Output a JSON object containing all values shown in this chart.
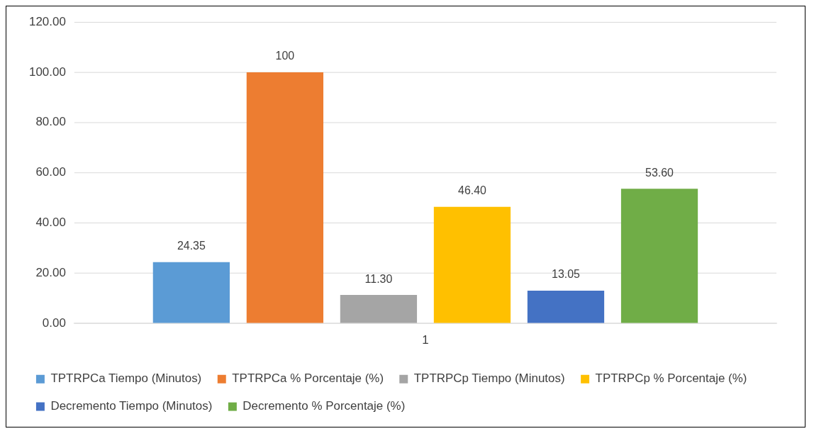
{
  "chart_data": {
    "type": "bar",
    "categories": [
      "1"
    ],
    "series": [
      {
        "name": "TPTRPCa Tiempo (Minutos)",
        "color": "#5b9bd5",
        "values": [
          24.35
        ],
        "value_labels": [
          "24.35"
        ]
      },
      {
        "name": "TPTRPCa % Porcentaje (%)",
        "color": "#ed7d31",
        "values": [
          100
        ],
        "value_labels": [
          "100"
        ]
      },
      {
        "name": "TPTRPCp Tiempo (Minutos)",
        "color": "#a5a5a5",
        "values": [
          11.3
        ],
        "value_labels": [
          "11.30"
        ]
      },
      {
        "name": "TPTRPCp % Porcentaje (%)",
        "color": "#ffc000",
        "values": [
          46.4
        ],
        "value_labels": [
          "46.40"
        ]
      },
      {
        "name": "Decremento Tiempo (Minutos)",
        "color": "#4472c4",
        "values": [
          13.05
        ],
        "value_labels": [
          "13.05"
        ]
      },
      {
        "name": "Decremento % Porcentaje (%)",
        "color": "#70ad47",
        "values": [
          53.6
        ],
        "value_labels": [
          "53.60"
        ]
      }
    ],
    "ylim": [
      0,
      120
    ],
    "yticks": [
      {
        "value": 0,
        "label": "0.00"
      },
      {
        "value": 20,
        "label": "20.00"
      },
      {
        "value": 40,
        "label": "40.00"
      },
      {
        "value": 60,
        "label": "60.00"
      },
      {
        "value": 80,
        "label": "80.00"
      },
      {
        "value": 100,
        "label": "100.00"
      },
      {
        "value": 120,
        "label": "120.00"
      }
    ],
    "grid": "y",
    "legend": "bottom"
  }
}
